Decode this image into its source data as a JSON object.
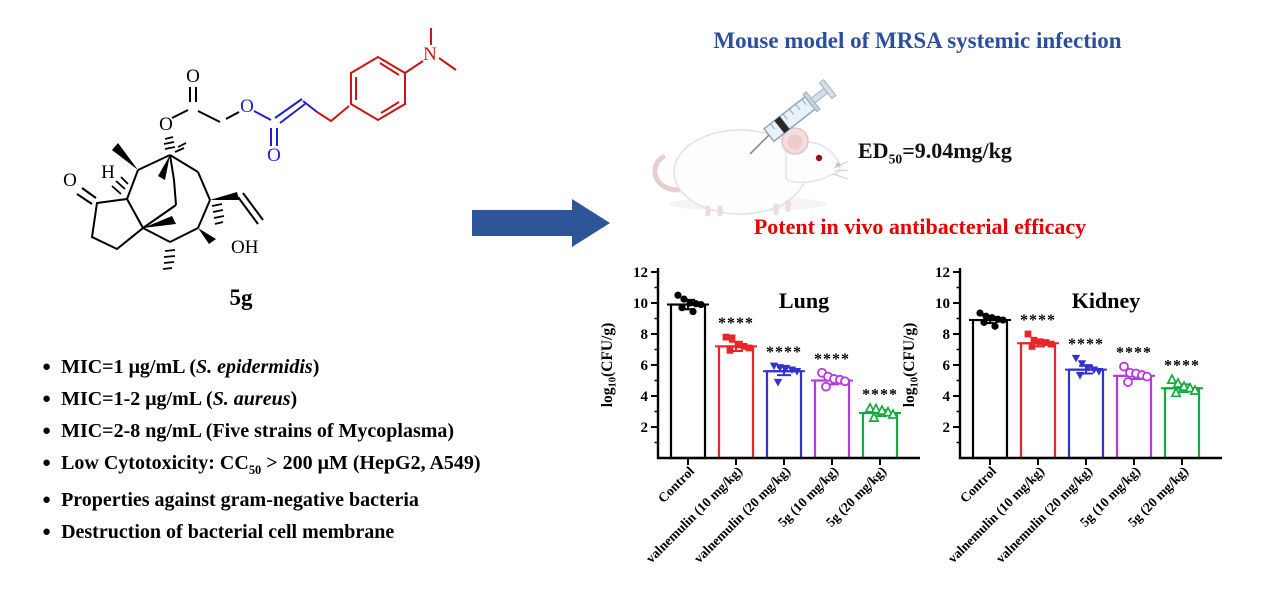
{
  "molecule": {
    "compound_label": "5g",
    "atoms": {
      "ketone_o": "O",
      "h": "H",
      "ester_o": "O",
      "glycolate_o": "O",
      "linker_o": "O",
      "acyl_o": "O",
      "oh": "OH",
      "n": "N"
    },
    "colors": {
      "core": "#000000",
      "ester": "#2020cc",
      "aryl": "#cc1515"
    }
  },
  "arrow": {
    "color": "#2e5597"
  },
  "header": {
    "title": "Mouse model of MRSA systemic infection",
    "title_color": "#2b4f9e"
  },
  "ed50": {
    "prefix": "ED",
    "sub": "50",
    "value": "=9.04mg/kg"
  },
  "caption": {
    "text": "Potent in vivo antibacterial efficacy",
    "color": "#e80000"
  },
  "bullets": {
    "items": [
      {
        "s1": "MIC=1 μg/mL (",
        "sub": "",
        "s2": "",
        "italic": "S. epidermidis",
        "s3": ")"
      },
      {
        "s1": "MIC=1-2 μg/mL (",
        "sub": "",
        "s2": "",
        "italic": "S. aureus",
        "s3": ")"
      },
      {
        "s1": "MIC=2-8 ng/mL (Five strains of Mycoplasma)",
        "sub": "",
        "s2": "",
        "italic": "",
        "s3": ""
      },
      {
        "s1": "Low Cytotoxicity: CC",
        "sub": "50",
        "s2": " > 200 μM (HepG2, A549)",
        "italic": "",
        "s3": ""
      },
      {
        "s1": "Properties against gram-negative bacteria",
        "sub": "",
        "s2": "",
        "italic": "",
        "s3": ""
      },
      {
        "s1": "Destruction of bacterial cell membrane",
        "sub": "",
        "s2": "",
        "italic": "",
        "s3": ""
      }
    ]
  },
  "chart_data": [
    {
      "type": "bar",
      "title": "Lung",
      "ylabel": "log10(CFU/g)",
      "ylabel_parts": {
        "main": "log",
        "sub": "10",
        "rest": "(CFU/g)"
      },
      "ylim": [
        0,
        12
      ],
      "yticks": [
        2,
        4,
        6,
        8,
        10,
        12
      ],
      "grid": false,
      "legend": "none",
      "bar_fill": "#ffffff",
      "categories": [
        "Control",
        "valnemulin (10 mg/kg)",
        "valnemulin (20 mg/kg)",
        "5g (10 mg/kg)",
        "5g (20 mg/kg)"
      ],
      "values": [
        9.9,
        7.2,
        5.6,
        5.0,
        2.9
      ],
      "errors": [
        0.3,
        0.3,
        0.25,
        0.25,
        0.2
      ],
      "points": [
        [
          10.5,
          10.25,
          10.0,
          9.95,
          9.9,
          9.7,
          9.45
        ],
        [
          7.8,
          7.75,
          7.3,
          7.2,
          7.1,
          6.95
        ],
        [
          5.95,
          5.85,
          5.8,
          5.7,
          5.6,
          4.9
        ],
        [
          5.5,
          5.25,
          5.1,
          5.05,
          4.95,
          4.6
        ],
        [
          3.2,
          3.15,
          3.05,
          2.95,
          2.8,
          2.6
        ]
      ],
      "significance": [
        "",
        "****",
        "****",
        "****",
        "****"
      ],
      "colors": [
        "#000000",
        "#e8252b",
        "#3333cc",
        "#b43be0",
        "#14ab3e"
      ],
      "markers": [
        "circle",
        "square",
        "tri-down",
        "circle-open",
        "tri-up-open"
      ]
    },
    {
      "type": "bar",
      "title": "Kidney",
      "ylabel": "log10(CFU/g)",
      "ylabel_parts": {
        "main": "log",
        "sub": "10",
        "rest": "(CFU/g)"
      },
      "ylim": [
        0,
        12
      ],
      "yticks": [
        2,
        4,
        6,
        8,
        10,
        12
      ],
      "grid": false,
      "legend": "none",
      "bar_fill": "#ffffff",
      "categories": [
        "Control",
        "valnemulin (10 mg/kg)",
        "valnemulin (20 mg/kg)",
        "5g (10 mg/kg)",
        "5g (20 mg/kg)"
      ],
      "values": [
        8.9,
        7.4,
        5.7,
        5.3,
        4.5
      ],
      "errors": [
        0.2,
        0.2,
        0.25,
        0.2,
        0.25
      ],
      "points": [
        [
          9.35,
          9.15,
          9.05,
          8.95,
          8.9,
          8.75,
          8.5
        ],
        [
          8.0,
          7.6,
          7.5,
          7.45,
          7.35,
          7.2
        ],
        [
          6.45,
          6.1,
          5.85,
          5.7,
          5.6,
          5.35
        ],
        [
          5.9,
          5.5,
          5.45,
          5.35,
          5.25,
          4.9
        ],
        [
          5.05,
          4.8,
          4.6,
          4.5,
          4.35,
          4.2
        ]
      ],
      "significance": [
        "",
        "****",
        "****",
        "****",
        "****"
      ],
      "colors": [
        "#000000",
        "#e8252b",
        "#3333cc",
        "#b43be0",
        "#14ab3e"
      ],
      "markers": [
        "circle",
        "square",
        "tri-down",
        "circle-open",
        "tri-up-open"
      ]
    }
  ]
}
